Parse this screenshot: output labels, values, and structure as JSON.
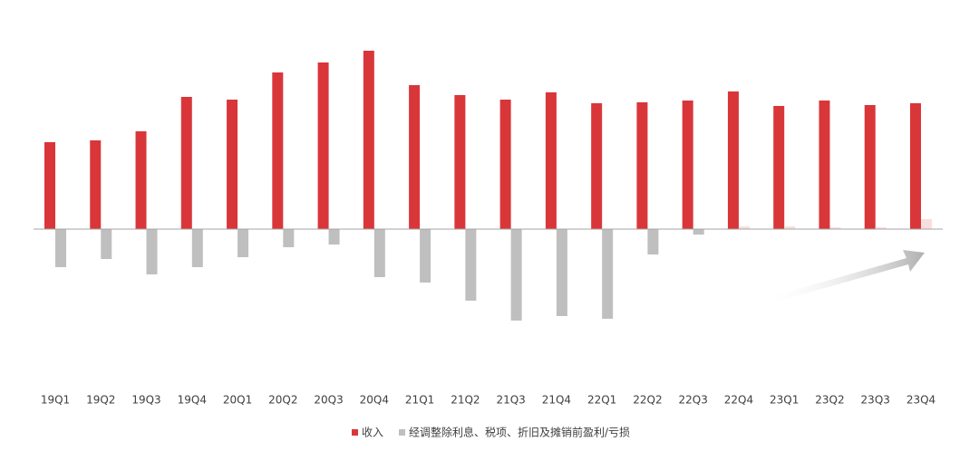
{
  "chart_data": {
    "type": "bar",
    "categories": [
      "19Q1",
      "19Q2",
      "19Q3",
      "19Q4",
      "20Q1",
      "20Q2",
      "20Q3",
      "20Q4",
      "21Q1",
      "21Q2",
      "21Q3",
      "21Q4",
      "22Q1",
      "22Q2",
      "22Q3",
      "22Q4",
      "23Q1",
      "23Q2",
      "23Q3",
      "23Q4"
    ],
    "series": [
      {
        "name": "收入",
        "color": "#d9363a",
        "values": [
          96,
          98,
          108,
          146,
          143,
          173,
          184,
          197,
          159,
          148,
          143,
          151,
          139,
          140,
          142,
          152,
          136,
          142,
          137,
          139
        ]
      },
      {
        "name": "经调整除利息、税项、折旧及摊销前盈利/亏损",
        "color": "#bfbfbf",
        "positive_color": "#f9dede",
        "values": [
          -42,
          -33,
          -50,
          -42,
          -31,
          -20,
          -17,
          -53,
          -59,
          -79,
          -101,
          -96,
          -99,
          -28,
          -6,
          3,
          3,
          2,
          2,
          11
        ]
      }
    ],
    "ylim": [
      -140,
      210
    ]
  }
}
